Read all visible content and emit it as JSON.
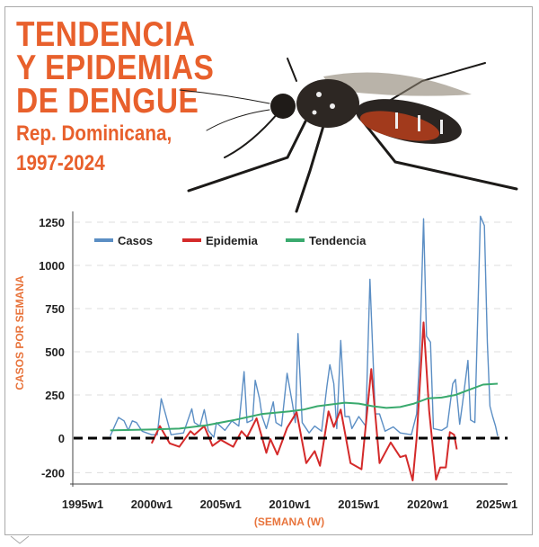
{
  "header": {
    "title_lines": [
      "TENDENCIA",
      "Y EPIDEMIAS",
      "DE DENGUE"
    ],
    "subtitle_lines": [
      "Rep. Dominicana,",
      "1997-2024"
    ],
    "accent_color": "#e8602c",
    "illustration": "aedes-mosquito-photo"
  },
  "chart_data": {
    "type": "line",
    "title": "TENDENCIA Y EPIDEMIAS DE DENGUE",
    "subtitle": "Rep. Dominicana, 1997-2024",
    "xlabel": "(SEMANA (W)",
    "ylabel": "CASOS POR SEMANA",
    "x_ticks": [
      "1995w1",
      "2000w1",
      "2005w1",
      "2010w1",
      "2015w1",
      "2020w1",
      "2025w1"
    ],
    "y_ticks": [
      -200,
      0,
      250,
      500,
      750,
      1000,
      1250
    ],
    "xlim": [
      "1995w1",
      "2025w1"
    ],
    "ylim": [
      -250,
      1300
    ],
    "grid": "horizontal-dashed",
    "reference_line": {
      "y": 0,
      "style": "dashed",
      "color": "#000000"
    },
    "legend_position": "top-left",
    "series": [
      {
        "name": "Casos",
        "color": "#5b8ec4",
        "points": [
          [
            "1997w1",
            12
          ],
          [
            "1997w32",
            120
          ],
          [
            "1998w1",
            100
          ],
          [
            "1998w17",
            45
          ],
          [
            "1998w32",
            100
          ],
          [
            "1998w48",
            90
          ],
          [
            "1999w17",
            40
          ],
          [
            "2000w1",
            20
          ],
          [
            "2000w22",
            20
          ],
          [
            "2000w37",
            228
          ],
          [
            "2001w1",
            140
          ],
          [
            "2001w22",
            20
          ],
          [
            "2002w17",
            30
          ],
          [
            "2002w48",
            170
          ],
          [
            "2003w6",
            90
          ],
          [
            "2003w27",
            70
          ],
          [
            "2003w43",
            165
          ],
          [
            "2004w6",
            45
          ],
          [
            "2004w27",
            5
          ],
          [
            "2004w37",
            90
          ],
          [
            "2005w17",
            45
          ],
          [
            "2005w43",
            100
          ],
          [
            "2006w17",
            70
          ],
          [
            "2006w37",
            385
          ],
          [
            "2006w48",
            90
          ],
          [
            "2007w17",
            105
          ],
          [
            "2007w27",
            335
          ],
          [
            "2007w43",
            228
          ],
          [
            "2008w1",
            125
          ],
          [
            "2008w17",
            55
          ],
          [
            "2008w43",
            210
          ],
          [
            "2009w1",
            90
          ],
          [
            "2009w22",
            70
          ],
          [
            "2009w43",
            375
          ],
          [
            "2010w11",
            200
          ],
          [
            "2010w22",
            90
          ],
          [
            "2010w32",
            605
          ],
          [
            "2010w48",
            90
          ],
          [
            "2011w22",
            30
          ],
          [
            "2011w43",
            70
          ],
          [
            "2012w17",
            40
          ],
          [
            "2012w37",
            300
          ],
          [
            "2012w48",
            425
          ],
          [
            "2013w11",
            315
          ],
          [
            "2013w22",
            55
          ],
          [
            "2013w37",
            565
          ],
          [
            "2014w1",
            125
          ],
          [
            "2014w17",
            125
          ],
          [
            "2014w27",
            55
          ],
          [
            "2015w1",
            125
          ],
          [
            "2015w27",
            70
          ],
          [
            "2015w43",
            920
          ],
          [
            "2016w11",
            140
          ],
          [
            "2016w27",
            140
          ],
          [
            "2016w48",
            40
          ],
          [
            "2017w27",
            65
          ],
          [
            "2018w1",
            30
          ],
          [
            "2018w43",
            20
          ],
          [
            "2019w11",
            140
          ],
          [
            "2019w22",
            470
          ],
          [
            "2019w37",
            1270
          ],
          [
            "2019w48",
            590
          ],
          [
            "2020w11",
            555
          ],
          [
            "2020w22",
            55
          ],
          [
            "2021w1",
            45
          ],
          [
            "2021w22",
            65
          ],
          [
            "2021w43",
            315
          ],
          [
            "2022w1",
            340
          ],
          [
            "2022w17",
            80
          ],
          [
            "2022w27",
            195
          ],
          [
            "2022w48",
            450
          ],
          [
            "2023w6",
            105
          ],
          [
            "2023w22",
            90
          ],
          [
            "2023w43",
            1285
          ],
          [
            "2024w6",
            1230
          ],
          [
            "2024w17",
            555
          ],
          [
            "2024w27",
            185
          ],
          [
            "2024w37",
            125
          ],
          [
            "2024w48",
            70
          ],
          [
            "2025w4",
            12
          ]
        ]
      },
      {
        "name": "Epidemia",
        "color": "#d42a2a",
        "points": [
          [
            "2000w1",
            -30
          ],
          [
            "2000w32",
            70
          ],
          [
            "2001w17",
            -30
          ],
          [
            "2002w1",
            -50
          ],
          [
            "2002w43",
            40
          ],
          [
            "2003w6",
            20
          ],
          [
            "2003w43",
            70
          ],
          [
            "2004w22",
            -45
          ],
          [
            "2005w1",
            -10
          ],
          [
            "2005w48",
            -50
          ],
          [
            "2006w27",
            40
          ],
          [
            "2006w48",
            5
          ],
          [
            "2007w32",
            115
          ],
          [
            "2008w17",
            -85
          ],
          [
            "2008w32",
            -5
          ],
          [
            "2009w6",
            -95
          ],
          [
            "2009w43",
            60
          ],
          [
            "2010w27",
            150
          ],
          [
            "2011w11",
            -145
          ],
          [
            "2011w43",
            -75
          ],
          [
            "2012w11",
            -160
          ],
          [
            "2012w43",
            155
          ],
          [
            "2013w11",
            65
          ],
          [
            "2013w37",
            165
          ],
          [
            "2014w22",
            -145
          ],
          [
            "2015w11",
            -180
          ],
          [
            "2015w48",
            400
          ],
          [
            "2016w27",
            -145
          ],
          [
            "2017w17",
            -25
          ],
          [
            "2018w1",
            -110
          ],
          [
            "2018w22",
            -100
          ],
          [
            "2018w48",
            -245
          ],
          [
            "2019w11",
            0
          ],
          [
            "2019w37",
            670
          ],
          [
            "2020w6",
            160
          ],
          [
            "2020w32",
            -240
          ],
          [
            "2020w48",
            -170
          ],
          [
            "2021w17",
            -170
          ],
          [
            "2021w32",
            35
          ],
          [
            "2021w48",
            20
          ],
          [
            "2022w6",
            -65
          ]
        ]
      },
      {
        "name": "Tendencia",
        "color": "#3aaa6e",
        "points": [
          [
            "1997w1",
            45
          ],
          [
            "2000w1",
            50
          ],
          [
            "2002w1",
            55
          ],
          [
            "2004w1",
            75
          ],
          [
            "2006w1",
            105
          ],
          [
            "2008w1",
            140
          ],
          [
            "2010w1",
            155
          ],
          [
            "2011w1",
            165
          ],
          [
            "2012w1",
            185
          ],
          [
            "2014w1",
            205
          ],
          [
            "2015w1",
            200
          ],
          [
            "2016w1",
            185
          ],
          [
            "2017w1",
            175
          ],
          [
            "2018w1",
            180
          ],
          [
            "2019w1",
            200
          ],
          [
            "2020w1",
            230
          ],
          [
            "2021w1",
            235
          ],
          [
            "2022w1",
            250
          ],
          [
            "2023w1",
            280
          ],
          [
            "2024w1",
            310
          ],
          [
            "2025w4",
            315
          ]
        ]
      }
    ]
  }
}
